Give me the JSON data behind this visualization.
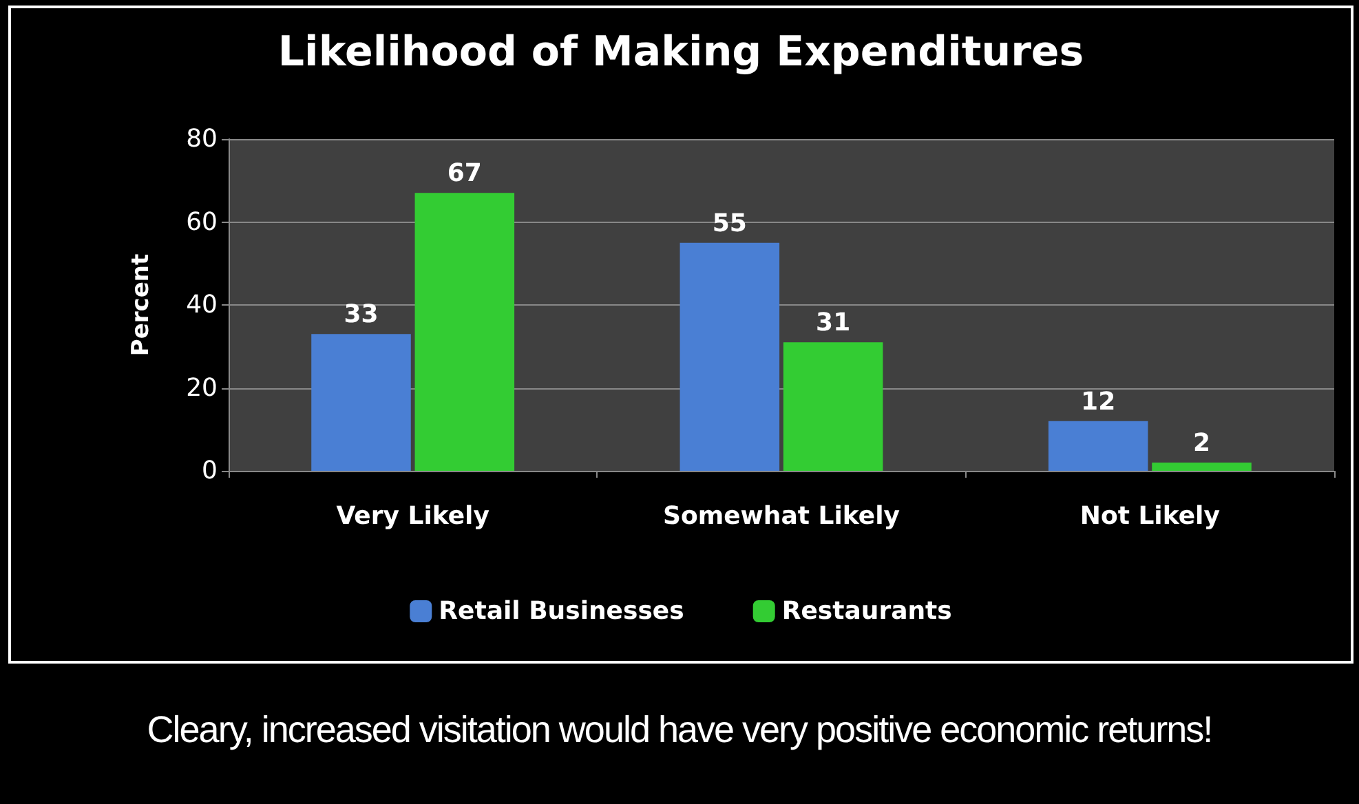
{
  "chart_data": {
    "type": "bar",
    "title": "Likelihood of Making Expenditures",
    "ylabel": "Percent",
    "categories": [
      "Very Likely",
      "Somewhat Likely",
      "Not Likely"
    ],
    "series": [
      {
        "name": "Retail Businesses",
        "color": "#4a7fd4",
        "values": [
          33,
          55,
          12
        ]
      },
      {
        "name": "Restaurants",
        "color": "#33cc33",
        "values": [
          67,
          31,
          2
        ]
      }
    ],
    "ylim": [
      0,
      80
    ],
    "yticks": [
      0,
      20,
      40,
      60,
      80
    ],
    "grid": "y",
    "legend": "bottom",
    "data_labels": true,
    "annotations": [
      "Cleary, increased visitation would have very positive economic returns!"
    ]
  }
}
